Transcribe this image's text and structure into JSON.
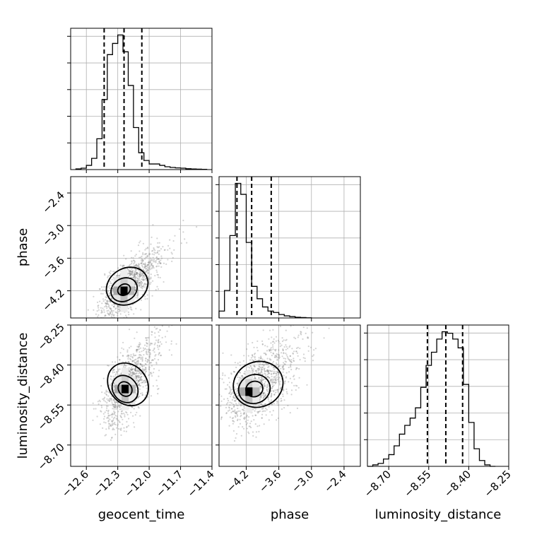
{
  "chart_data": {
    "type": "corner",
    "parameters": [
      "geocent_time",
      "phase",
      "luminosity_distance"
    ],
    "axes": {
      "geocent_time": {
        "range": [
          -12.75,
          -11.4
        ],
        "ticks": [
          -12.6,
          -12.3,
          -12.0,
          -11.7,
          -11.4
        ],
        "tick_labels": [
          "−12.6",
          "−12.3",
          "−12.0",
          "−11.7",
          "−11.4"
        ]
      },
      "phase": {
        "range": [
          -4.7,
          -2.1
        ],
        "ticks": [
          -4.2,
          -3.6,
          -3.0,
          -2.4
        ],
        "tick_labels": [
          "−4.2",
          "−3.6",
          "−3.0",
          "−2.4"
        ]
      },
      "luminosity_distance": {
        "range": [
          -8.78,
          -8.25
        ],
        "ticks": [
          -8.7,
          -8.55,
          -8.4,
          -8.25
        ],
        "tick_labels": [
          "−8.70",
          "−8.55",
          "−8.40",
          "−8.25"
        ]
      }
    },
    "histograms": [
      {
        "param": "geocent_time",
        "bin_edges": [
          -12.7,
          -12.65,
          -12.6,
          -12.55,
          -12.5,
          -12.45,
          -12.4,
          -12.35,
          -12.3,
          -12.25,
          -12.2,
          -12.15,
          -12.1,
          -12.05,
          -12.0,
          -11.95,
          -11.9,
          -11.85,
          -11.8,
          -11.75,
          -11.7,
          -11.65,
          -11.6,
          -11.55,
          -11.5,
          -11.45
        ],
        "counts": [
          0.005,
          0.01,
          0.03,
          0.08,
          0.22,
          0.5,
          0.82,
          0.9,
          0.96,
          0.84,
          0.6,
          0.3,
          0.12,
          0.065,
          0.04,
          0.04,
          0.03,
          0.02,
          0.015,
          0.012,
          0.01,
          0.006,
          0.004,
          0.003,
          0.002
        ],
        "quantiles": [
          -12.43,
          -12.24,
          -12.07
        ]
      },
      {
        "param": "phase",
        "bin_edges": [
          -4.7,
          -4.6,
          -4.5,
          -4.4,
          -4.3,
          -4.2,
          -4.1,
          -4.0,
          -3.9,
          -3.8,
          -3.7,
          -3.6,
          -3.5,
          -3.4,
          -3.3,
          -3.2,
          -3.1,
          -3.0
        ],
        "counts": [
          0.05,
          0.2,
          0.6,
          0.98,
          0.9,
          0.55,
          0.23,
          0.14,
          0.08,
          0.05,
          0.04,
          0.025,
          0.015,
          0.01,
          0.005,
          0.003,
          0.001
        ],
        "quantiles": [
          -4.37,
          -4.1,
          -3.74
        ]
      },
      {
        "param": "luminosity_distance",
        "bin_edges": [
          -8.78,
          -8.76,
          -8.74,
          -8.72,
          -8.7,
          -8.68,
          -8.66,
          -8.64,
          -8.62,
          -8.6,
          -8.58,
          -8.56,
          -8.54,
          -8.52,
          -8.5,
          -8.48,
          -8.46,
          -8.44,
          -8.42,
          -8.4,
          -8.38,
          -8.36,
          -8.34,
          -8.32,
          -8.3
        ],
        "counts": [
          0.0,
          0.01,
          0.02,
          0.05,
          0.08,
          0.14,
          0.22,
          0.28,
          0.33,
          0.4,
          0.54,
          0.69,
          0.78,
          0.87,
          0.92,
          0.91,
          0.87,
          0.81,
          0.56,
          0.3,
          0.12,
          0.04,
          0.01,
          0.0
        ],
        "quantiles": [
          -8.555,
          -8.486,
          -8.423
        ]
      }
    ],
    "scatter_panels": [
      {
        "x": "geocent_time",
        "y": "phase",
        "center": [
          -12.24,
          -4.18
        ],
        "std": [
          0.12,
          0.26
        ],
        "corr": 0.6,
        "contour_levels": [
          0.7,
          1.45,
          2.3
        ],
        "peak": [
          -12.24,
          -4.2
        ]
      },
      {
        "x": "geocent_time",
        "y": "luminosity_distance",
        "center": [
          -12.23,
          -8.49
        ],
        "std": [
          0.11,
          0.07
        ],
        "corr": 0.55,
        "contour_levels": [
          0.75,
          1.4,
          2.2
        ],
        "peak": [
          -12.23,
          -8.49
        ]
      },
      {
        "x": "phase",
        "y": "luminosity_distance",
        "center": [
          -4.05,
          -8.49
        ],
        "std": [
          0.28,
          0.07
        ],
        "corr": 0.35,
        "contour_levels": [
          0.75,
          1.4,
          2.2
        ],
        "peak": [
          -4.15,
          -8.5
        ]
      }
    ],
    "grid": true,
    "colors": {
      "points": "#808080",
      "lines": "#000000",
      "grid": "#b0b0b0",
      "density_dark": "#000000",
      "density_light": "#f2f2f2"
    }
  }
}
